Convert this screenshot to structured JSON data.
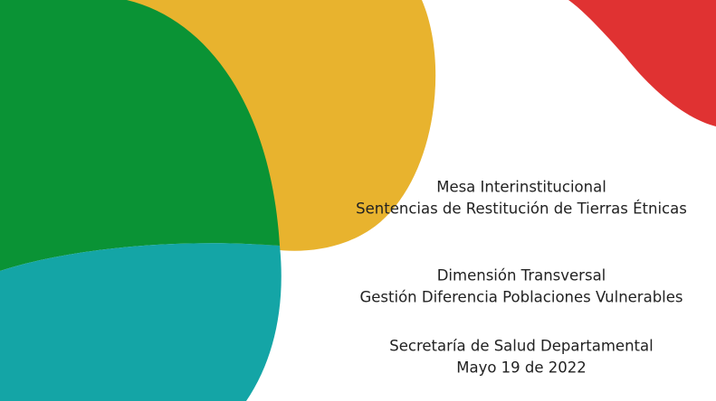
{
  "title_block": {
    "lines": [
      "Mesa Interinstitucional",
      "Sentencias de Restitución de Tierras Étnicas"
    ]
  },
  "dimension_block": {
    "lines": [
      "Dimensión Transversal",
      "Gestión Diferencia Poblaciones Vulnerables"
    ]
  },
  "footer_block": {
    "lines": [
      "Secretaría de Salud Departamental",
      "Mayo 19 de 2022"
    ]
  }
}
